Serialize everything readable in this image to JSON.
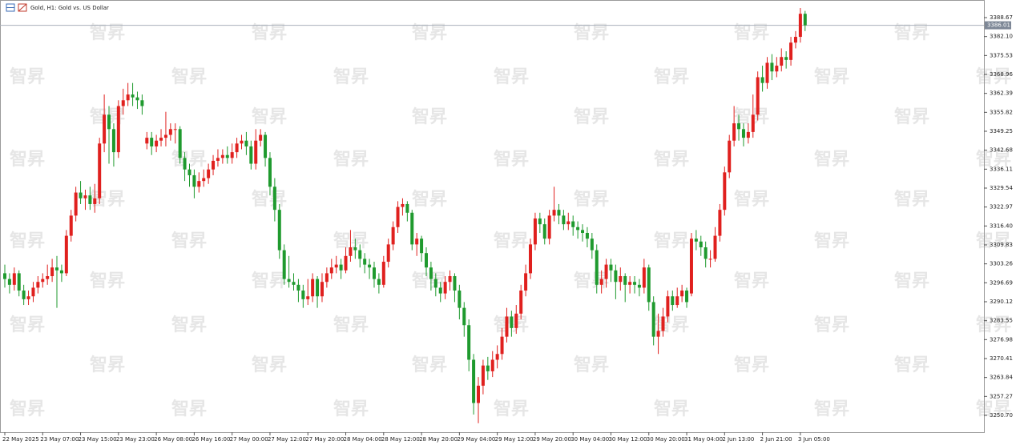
{
  "chart_data": {
    "type": "candlestick",
    "title": "Gold, H1:  Gold vs. US Dollar",
    "watermark": "智昇",
    "up_color": "#e0201e",
    "down_color": "#1f9a2e",
    "current_price": 3386.01,
    "categories": [
      "22 May 2025",
      null,
      null,
      null,
      null,
      null,
      null,
      null,
      "23 May 07:00",
      null,
      null,
      null,
      null,
      null,
      null,
      null,
      "23 May 15:00",
      null,
      null,
      null,
      null,
      null,
      null,
      null,
      "23 May 23:00",
      null,
      null,
      null,
      null,
      null,
      null,
      null,
      "26 May 08:00",
      null,
      null,
      null,
      null,
      null,
      null,
      null,
      "26 May 16:00",
      null,
      null,
      null,
      null,
      null,
      null,
      null,
      "27 May 00:00",
      null,
      null,
      null,
      null,
      null,
      null,
      null,
      "27 May 12:00",
      null,
      null,
      null,
      null,
      null,
      null,
      null,
      "27 May 20:00",
      null,
      null,
      null,
      null,
      null,
      null,
      null,
      "28 May 04:00",
      null,
      null,
      null,
      null,
      null,
      null,
      null,
      "28 May 12:00",
      null,
      null,
      null,
      null,
      null,
      null,
      null,
      "28 May 20:00",
      null,
      null,
      null,
      null,
      null,
      null,
      null,
      "29 May 04:00",
      null,
      null,
      null,
      null,
      null,
      null,
      null,
      "29 May 12:00",
      null,
      null,
      null,
      null,
      null,
      null,
      null,
      "29 May 20:00",
      null,
      null,
      null,
      null,
      null,
      null,
      null,
      "30 May 04:00",
      null,
      null,
      null,
      null,
      null,
      null,
      null,
      "30 May 12:00",
      null,
      null,
      null,
      null,
      null,
      null,
      null,
      "30 May 20:00",
      null,
      null,
      null,
      null,
      null,
      null,
      null,
      "31 May 04:00",
      null,
      null,
      null,
      null,
      null,
      null,
      null,
      "2 Jun 13:00",
      null,
      null,
      null,
      null,
      null,
      null,
      null,
      "2 Jun 21:00",
      null,
      null,
      null,
      null,
      null,
      null,
      null,
      "3 Jun 05:00",
      null
    ],
    "open": [
      3300,
      3298,
      3296,
      3300,
      3294,
      3291,
      3292,
      3295,
      3297,
      3298,
      3299,
      3302,
      3301,
      3300,
      3313,
      3320,
      3328,
      3326,
      3327,
      3324,
      3326,
      3345,
      3355,
      3350,
      3342,
      3358,
      3360,
      3362,
      3361,
      3360,
      3345,
      3347,
      3344,
      3346,
      3347,
      3348,
      3350,
      3350,
      3340,
      3336,
      3334,
      3330,
      3332,
      3333,
      3336,
      3339,
      3340,
      3341,
      3340,
      3342,
      3345,
      3346,
      3344,
      3338,
      3346,
      3348,
      3340,
      3330,
      3322,
      3308,
      3298,
      3297,
      3296,
      3294,
      3291,
      3292,
      3298,
      3292,
      3297,
      3300,
      3302,
      3303,
      3301,
      3306,
      3309,
      3308,
      3305,
      3303,
      3302,
      3298,
      3296,
      3304,
      3310,
      3316,
      3323,
      3324,
      3321,
      3310,
      3312,
      3307,
      3302,
      3298,
      3295,
      3293,
      3297,
      3299,
      3294,
      3288,
      3282,
      3270,
      3255,
      3261,
      3268,
      3266,
      3270,
      3272,
      3278,
      3285,
      3281,
      3286,
      3294,
      3300,
      3310,
      3319,
      3317,
      3312,
      3320,
      3322,
      3320,
      3317,
      3318,
      3316,
      3315,
      3314,
      3312,
      3308,
      3296,
      3298,
      3303,
      3301,
      3297,
      3299,
      3296,
      3297,
      3296,
      3295,
      3302,
      3290,
      3278,
      3280,
      3285,
      3292,
      3289,
      3292,
      3294,
      3293,
      3312,
      3311,
      3309,
      3305,
      3305,
      3313,
      3322,
      3335,
      3346,
      3352,
      3350,
      3347,
      3349,
      3355,
      3368,
      3366,
      3373,
      3370,
      3372,
      3375,
      3374,
      3380,
      3382,
      3390
    ],
    "high": [
      3303,
      3300,
      3302,
      3301,
      3296,
      3294,
      3297,
      3299,
      3300,
      3303,
      3305,
      3306,
      3303,
      3315,
      3322,
      3330,
      3332,
      3329,
      3330,
      3331,
      3347,
      3362,
      3358,
      3352,
      3360,
      3364,
      3366,
      3366,
      3363,
      3362,
      3349,
      3349,
      3348,
      3350,
      3356,
      3352,
      3352,
      3351,
      3342,
      3338,
      3336,
      3335,
      3336,
      3338,
      3341,
      3343,
      3343,
      3344,
      3345,
      3347,
      3348,
      3349,
      3346,
      3350,
      3350,
      3349,
      3342,
      3333,
      3324,
      3310,
      3306,
      3300,
      3298,
      3296,
      3298,
      3300,
      3299,
      3300,
      3302,
      3305,
      3306,
      3305,
      3309,
      3315,
      3312,
      3310,
      3307,
      3305,
      3304,
      3300,
      3306,
      3312,
      3318,
      3325,
      3326,
      3325,
      3322,
      3314,
      3313,
      3309,
      3304,
      3300,
      3297,
      3299,
      3301,
      3300,
      3296,
      3290,
      3284,
      3272,
      3264,
      3270,
      3271,
      3273,
      3275,
      3281,
      3288,
      3287,
      3289,
      3296,
      3303,
      3312,
      3321,
      3321,
      3319,
      3322,
      3330,
      3324,
      3322,
      3321,
      3320,
      3318,
      3317,
      3316,
      3314,
      3310,
      3301,
      3305,
      3305,
      3303,
      3302,
      3300,
      3299,
      3299,
      3298,
      3305,
      3303,
      3292,
      3286,
      3288,
      3294,
      3294,
      3295,
      3296,
      3295,
      3314,
      3315,
      3313,
      3311,
      3308,
      3316,
      3324,
      3337,
      3348,
      3358,
      3355,
      3352,
      3352,
      3362,
      3370,
      3372,
      3375,
      3376,
      3375,
      3378,
      3377,
      3382,
      3384,
      3392,
      3391
    ],
    "low": [
      3295,
      3293,
      3294,
      3292,
      3289,
      3289,
      3290,
      3293,
      3295,
      3296,
      3297,
      3288,
      3297,
      3299,
      3311,
      3318,
      3324,
      3322,
      3322,
      3321,
      3324,
      3342,
      3338,
      3337,
      3340,
      3355,
      3358,
      3358,
      3357,
      3355,
      3343,
      3341,
      3342,
      3344,
      3344,
      3346,
      3345,
      3338,
      3332,
      3330,
      3326,
      3328,
      3330,
      3331,
      3334,
      3337,
      3338,
      3338,
      3338,
      3340,
      3343,
      3341,
      3336,
      3336,
      3344,
      3337,
      3327,
      3318,
      3305,
      3296,
      3295,
      3294,
      3290,
      3288,
      3289,
      3290,
      3288,
      3290,
      3295,
      3298,
      3300,
      3298,
      3300,
      3304,
      3305,
      3302,
      3300,
      3298,
      3295,
      3293,
      3295,
      3302,
      3308,
      3314,
      3320,
      3318,
      3308,
      3306,
      3304,
      3299,
      3294,
      3292,
      3290,
      3291,
      3294,
      3290,
      3284,
      3278,
      3266,
      3251,
      3248,
      3258,
      3263,
      3264,
      3267,
      3270,
      3276,
      3278,
      3279,
      3284,
      3292,
      3298,
      3308,
      3314,
      3310,
      3310,
      3318,
      3317,
      3315,
      3315,
      3313,
      3312,
      3311,
      3309,
      3305,
      3293,
      3293,
      3295,
      3297,
      3291,
      3294,
      3290,
      3293,
      3293,
      3292,
      3293,
      3287,
      3275,
      3272,
      3278,
      3283,
      3287,
      3288,
      3290,
      3288,
      3292,
      3308,
      3306,
      3302,
      3302,
      3304,
      3311,
      3320,
      3333,
      3344,
      3346,
      3344,
      3345,
      3347,
      3353,
      3363,
      3364,
      3367,
      3368,
      3370,
      3371,
      3372,
      3378,
      3380,
      3384
    ],
    "close": [
      3298,
      3296,
      3300,
      3294,
      3291,
      3292,
      3295,
      3297,
      3298,
      3299,
      3302,
      3301,
      3300,
      3313,
      3320,
      3328,
      3326,
      3327,
      3324,
      3326,
      3345,
      3355,
      3350,
      3342,
      3358,
      3360,
      3362,
      3361,
      3360,
      3358,
      3347,
      3344,
      3346,
      3347,
      3348,
      3350,
      3350,
      3340,
      3336,
      3334,
      3330,
      3332,
      3333,
      3336,
      3339,
      3340,
      3341,
      3340,
      3342,
      3345,
      3346,
      3344,
      3338,
      3346,
      3348,
      3340,
      3330,
      3322,
      3308,
      3298,
      3297,
      3296,
      3294,
      3291,
      3292,
      3298,
      3292,
      3297,
      3300,
      3302,
      3303,
      3301,
      3306,
      3309,
      3308,
      3305,
      3303,
      3302,
      3298,
      3296,
      3304,
      3310,
      3316,
      3323,
      3324,
      3321,
      3310,
      3312,
      3307,
      3302,
      3298,
      3295,
      3293,
      3297,
      3299,
      3294,
      3288,
      3282,
      3270,
      3255,
      3261,
      3268,
      3266,
      3270,
      3272,
      3278,
      3285,
      3281,
      3286,
      3294,
      3300,
      3310,
      3319,
      3317,
      3312,
      3320,
      3322,
      3320,
      3317,
      3318,
      3316,
      3315,
      3314,
      3312,
      3308,
      3296,
      3298,
      3303,
      3301,
      3297,
      3299,
      3296,
      3297,
      3296,
      3295,
      3302,
      3290,
      3278,
      3280,
      3285,
      3292,
      3289,
      3292,
      3294,
      3290,
      3312,
      3311,
      3309,
      3305,
      3305,
      3313,
      3322,
      3335,
      3346,
      3352,
      3350,
      3347,
      3349,
      3355,
      3368,
      3366,
      3373,
      3370,
      3372,
      3375,
      3374,
      3380,
      3382,
      3390,
      3386
    ],
    "ylim": [
      3244.87,
      3394.78
    ],
    "yticks": [
      3388.67,
      {
        "value": 3382.1,
        "label": "3382.10"
      },
      3375.53,
      3368.96,
      3362.39,
      3355.82,
      3349.25,
      3342.68,
      3336.11,
      3329.54,
      3322.97,
      {
        "value": 3316.4,
        "label": "3316.40"
      },
      3309.83,
      3303.26,
      3296.69,
      3290.12,
      3283.55,
      3276.98,
      3270.41,
      3263.84,
      3257.27,
      {
        "value": 3250.7,
        "label": "3250.70"
      }
    ]
  }
}
